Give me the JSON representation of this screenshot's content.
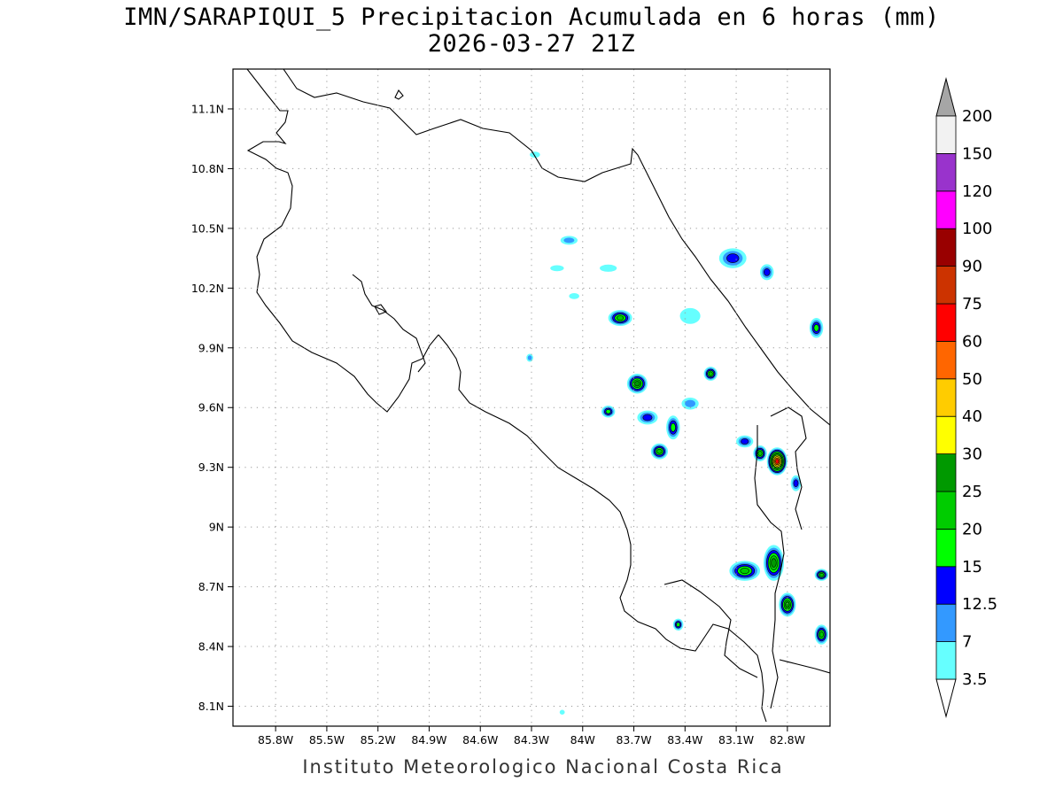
{
  "title": {
    "line1": "IMN/SARAPIQUI_5 Precipitacion Acumulada en 6 horas (mm)",
    "line2": "2026-03-27 21Z"
  },
  "footer": "Instituto Meteorologico Nacional Costa Rica",
  "map": {
    "lon_range": [
      -86.05,
      -82.55
    ],
    "lat_range": [
      8.0,
      11.3
    ],
    "grid": "dotted",
    "lon_ticks": [
      {
        "value": -85.8,
        "label": "85.8W"
      },
      {
        "value": -85.5,
        "label": "85.5W"
      },
      {
        "value": -85.2,
        "label": "85.2W"
      },
      {
        "value": -84.9,
        "label": "84.9W"
      },
      {
        "value": -84.6,
        "label": "84.6W"
      },
      {
        "value": -84.3,
        "label": "84.3W"
      },
      {
        "value": -84.0,
        "label": "84W"
      },
      {
        "value": -83.7,
        "label": "83.7W"
      },
      {
        "value": -83.4,
        "label": "83.4W"
      },
      {
        "value": -83.1,
        "label": "83.1W"
      },
      {
        "value": -82.8,
        "label": "82.8W"
      }
    ],
    "lat_ticks": [
      {
        "value": 8.1,
        "label": "8.1N"
      },
      {
        "value": 8.4,
        "label": "8.4N"
      },
      {
        "value": 8.7,
        "label": "8.7N"
      },
      {
        "value": 9.0,
        "label": "9N"
      },
      {
        "value": 9.3,
        "label": "9.3N"
      },
      {
        "value": 9.6,
        "label": "9.6N"
      },
      {
        "value": 9.9,
        "label": "9.9N"
      },
      {
        "value": 10.2,
        "label": "10.2N"
      },
      {
        "value": 10.5,
        "label": "10.5N"
      },
      {
        "value": 10.8,
        "label": "10.8N"
      },
      {
        "value": 11.1,
        "label": "11.1N"
      }
    ],
    "colorbar": {
      "levels": [
        "3.5",
        "7",
        "12.5",
        "15",
        "20",
        "25",
        "30",
        "40",
        "50",
        "60",
        "75",
        "90",
        "100",
        "120",
        "150",
        "200"
      ],
      "colors": [
        "#66ffff",
        "#3399ff",
        "#0000ff",
        "#00ff00",
        "#00cc00",
        "#009900",
        "#ffff00",
        "#ffcc00",
        "#ff6600",
        "#ff0000",
        "#cc3300",
        "#990000",
        "#ff00ff",
        "#9933cc",
        "#f2f2f2"
      ],
      "under_color": "#ffffff",
      "over_color": "#a6a6a6"
    },
    "precip_cells": [
      {
        "lon": -84.28,
        "lat": 10.87,
        "rx": 0.03,
        "ry": 0.015,
        "level": 1
      },
      {
        "lon": -84.08,
        "lat": 10.44,
        "rx": 0.05,
        "ry": 0.022,
        "level": 2
      },
      {
        "lon": -84.15,
        "lat": 10.3,
        "rx": 0.04,
        "ry": 0.015,
        "level": 1
      },
      {
        "lon": -83.85,
        "lat": 10.3,
        "rx": 0.05,
        "ry": 0.018,
        "level": 1
      },
      {
        "lon": -84.05,
        "lat": 10.16,
        "rx": 0.03,
        "ry": 0.015,
        "level": 1
      },
      {
        "lon": -83.78,
        "lat": 10.05,
        "rx": 0.07,
        "ry": 0.04,
        "level": 5
      },
      {
        "lon": -83.68,
        "lat": 9.72,
        "rx": 0.06,
        "ry": 0.05,
        "level": 6
      },
      {
        "lon": -83.85,
        "lat": 9.58,
        "rx": 0.04,
        "ry": 0.03,
        "level": 4
      },
      {
        "lon": -83.62,
        "lat": 9.55,
        "rx": 0.06,
        "ry": 0.035,
        "level": 3
      },
      {
        "lon": -83.55,
        "lat": 9.38,
        "rx": 0.05,
        "ry": 0.04,
        "level": 5
      },
      {
        "lon": -83.47,
        "lat": 9.5,
        "rx": 0.04,
        "ry": 0.06,
        "level": 4
      },
      {
        "lon": -83.37,
        "lat": 9.62,
        "rx": 0.05,
        "ry": 0.03,
        "level": 2
      },
      {
        "lon": -83.25,
        "lat": 9.77,
        "rx": 0.04,
        "ry": 0.035,
        "level": 5
      },
      {
        "lon": -83.37,
        "lat": 10.06,
        "rx": 0.06,
        "ry": 0.04,
        "level": 1
      },
      {
        "lon": -83.12,
        "lat": 10.35,
        "rx": 0.08,
        "ry": 0.05,
        "level": 3
      },
      {
        "lon": -82.92,
        "lat": 10.28,
        "rx": 0.04,
        "ry": 0.04,
        "level": 3
      },
      {
        "lon": -82.63,
        "lat": 10.0,
        "rx": 0.04,
        "ry": 0.05,
        "level": 4
      },
      {
        "lon": -83.05,
        "lat": 9.43,
        "rx": 0.05,
        "ry": 0.03,
        "level": 3
      },
      {
        "lon": -82.96,
        "lat": 9.37,
        "rx": 0.04,
        "ry": 0.04,
        "level": 5
      },
      {
        "lon": -82.86,
        "lat": 9.33,
        "rx": 0.06,
        "ry": 0.07,
        "level": 10
      },
      {
        "lon": -82.75,
        "lat": 9.22,
        "rx": 0.03,
        "ry": 0.04,
        "level": 3
      },
      {
        "lon": -83.05,
        "lat": 8.78,
        "rx": 0.09,
        "ry": 0.05,
        "level": 5
      },
      {
        "lon": -82.88,
        "lat": 8.82,
        "rx": 0.06,
        "ry": 0.09,
        "level": 6
      },
      {
        "lon": -82.8,
        "lat": 8.61,
        "rx": 0.05,
        "ry": 0.06,
        "level": 6
      },
      {
        "lon": -82.6,
        "lat": 8.76,
        "rx": 0.04,
        "ry": 0.03,
        "level": 5
      },
      {
        "lon": -82.6,
        "lat": 8.46,
        "rx": 0.04,
        "ry": 0.05,
        "level": 5
      },
      {
        "lon": -83.44,
        "lat": 8.51,
        "rx": 0.03,
        "ry": 0.03,
        "level": 4
      },
      {
        "lon": -84.31,
        "lat": 9.85,
        "rx": 0.02,
        "ry": 0.02,
        "level": 2
      },
      {
        "lon": -84.12,
        "lat": 8.07,
        "rx": 0.015,
        "ry": 0.012,
        "level": 1
      }
    ]
  }
}
